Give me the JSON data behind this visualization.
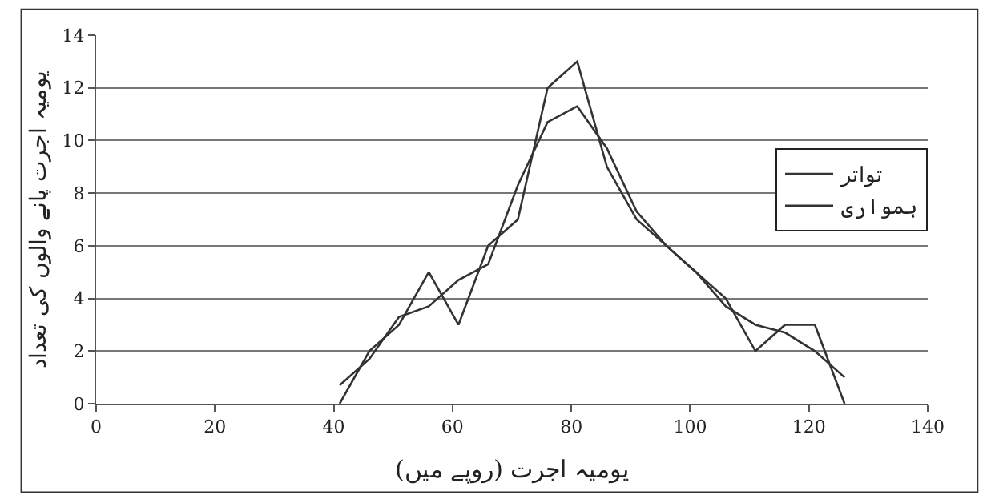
{
  "chart_data": {
    "type": "line",
    "xlabel": "یومیہ اجرت (روپے میں)",
    "ylabel": "یومیہ اجرت پانے والوں کی تعداد",
    "x": [
      41,
      46,
      51,
      56,
      61,
      66,
      71,
      76,
      81,
      86,
      91,
      96,
      101,
      106,
      111,
      116,
      121,
      126
    ],
    "series": [
      {
        "name": "تواتر",
        "color": "#333333",
        "values": [
          0,
          2,
          3,
          5,
          3,
          6,
          7,
          12,
          13,
          9,
          7,
          6,
          5,
          4,
          2,
          3,
          3,
          0
        ]
      },
      {
        "name": "ہمواری",
        "color": "#333333",
        "values": [
          0.7,
          1.7,
          3.3,
          3.7,
          4.7,
          5.3,
          8.3,
          10.7,
          11.3,
          9.7,
          7.3,
          6,
          5,
          3.7,
          3,
          2.7,
          2,
          1
        ]
      }
    ],
    "xlim": [
      0,
      140
    ],
    "xticks": [
      0,
      20,
      40,
      60,
      80,
      100,
      120,
      140
    ],
    "ylim": [
      0,
      14
    ],
    "yticks": [
      0,
      2,
      4,
      6,
      8,
      10,
      12,
      14
    ],
    "grid": "y",
    "legend": "right",
    "marker": "none",
    "line_style": "solid"
  }
}
